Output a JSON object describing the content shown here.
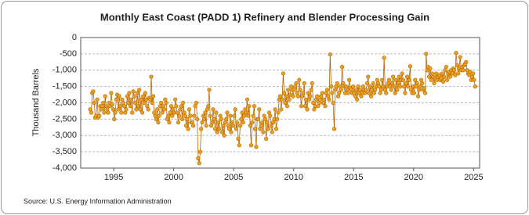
{
  "chart_data": {
    "type": "line",
    "title": "Monthly East Coast (PADD 1) Refinery and Blender Processing Gain",
    "y_label": "Thousand Barrels",
    "source": "Source: U.S. Energy Information Administration",
    "xlim": [
      1992.25,
      2025.5
    ],
    "xticks": [
      1995,
      2000,
      2005,
      2010,
      2015,
      2020,
      2025
    ],
    "ylim": [
      -4000,
      0
    ],
    "yticks": [
      {
        "value": -4000,
        "label": "-4,000"
      },
      {
        "value": -3500,
        "label": "-3,500"
      },
      {
        "value": -3000,
        "label": "-3,000"
      },
      {
        "value": -2500,
        "label": "-2,500"
      },
      {
        "value": -2000,
        "label": "-2,000"
      },
      {
        "value": -1500,
        "label": "-1,500"
      },
      {
        "value": -1000,
        "label": "-1,000"
      },
      -500,
      0
    ],
    "grid": true,
    "series": [
      {
        "name": "East Coast (PADD 1) Refinery and Blender Processing Gain",
        "color": "#e8a020",
        "line_color": "#b86400",
        "x": [
          1993.04,
          1993.13,
          1993.21,
          1993.29,
          1993.38,
          1993.46,
          1993.54,
          1993.63,
          1993.71,
          1993.79,
          1993.88,
          1993.96,
          1994.04,
          1994.13,
          1994.21,
          1994.29,
          1994.38,
          1994.46,
          1994.54,
          1994.63,
          1994.71,
          1994.79,
          1994.88,
          1994.96,
          1995.04,
          1995.13,
          1995.21,
          1995.29,
          1995.38,
          1995.46,
          1995.54,
          1995.63,
          1995.71,
          1995.79,
          1995.88,
          1995.96,
          1996.04,
          1996.13,
          1996.21,
          1996.29,
          1996.38,
          1996.46,
          1996.54,
          1996.63,
          1996.71,
          1996.79,
          1996.88,
          1996.96,
          1997.04,
          1997.13,
          1997.21,
          1997.29,
          1997.38,
          1997.46,
          1997.54,
          1997.63,
          1997.71,
          1997.79,
          1997.88,
          1997.96,
          1998.04,
          1998.13,
          1998.21,
          1998.29,
          1998.38,
          1998.46,
          1998.54,
          1998.63,
          1998.71,
          1998.79,
          1998.88,
          1998.96,
          1999.04,
          1999.13,
          1999.21,
          1999.29,
          1999.38,
          1999.46,
          1999.54,
          1999.63,
          1999.71,
          1999.79,
          1999.88,
          1999.96,
          2000.04,
          2000.13,
          2000.21,
          2000.29,
          2000.38,
          2000.46,
          2000.54,
          2000.63,
          2000.71,
          2000.79,
          2000.88,
          2000.96,
          2001.04,
          2001.13,
          2001.21,
          2001.29,
          2001.38,
          2001.46,
          2001.54,
          2001.63,
          2001.71,
          2001.79,
          2001.88,
          2001.96,
          2002.04,
          2002.13,
          2002.21,
          2002.29,
          2002.38,
          2002.46,
          2002.54,
          2002.63,
          2002.71,
          2002.79,
          2002.88,
          2002.96,
          2003.04,
          2003.13,
          2003.21,
          2003.29,
          2003.38,
          2003.46,
          2003.54,
          2003.63,
          2003.71,
          2003.79,
          2003.88,
          2003.96,
          2004.04,
          2004.13,
          2004.21,
          2004.29,
          2004.38,
          2004.46,
          2004.54,
          2004.63,
          2004.71,
          2004.79,
          2004.88,
          2004.96,
          2005.04,
          2005.13,
          2005.21,
          2005.29,
          2005.38,
          2005.46,
          2005.54,
          2005.63,
          2005.71,
          2005.79,
          2005.88,
          2005.96,
          2006.04,
          2006.13,
          2006.21,
          2006.29,
          2006.38,
          2006.46,
          2006.54,
          2006.63,
          2006.71,
          2006.79,
          2006.88,
          2006.96,
          2007.04,
          2007.13,
          2007.21,
          2007.29,
          2007.38,
          2007.46,
          2007.54,
          2007.63,
          2007.71,
          2007.79,
          2007.88,
          2007.96,
          2008.04,
          2008.13,
          2008.21,
          2008.29,
          2008.38,
          2008.46,
          2008.54,
          2008.63,
          2008.71,
          2008.79,
          2008.88,
          2008.96,
          2009.04,
          2009.13,
          2009.21,
          2009.29,
          2009.38,
          2009.46,
          2009.54,
          2009.63,
          2009.71,
          2009.79,
          2009.88,
          2009.96,
          2010.04,
          2010.13,
          2010.21,
          2010.29,
          2010.38,
          2010.46,
          2010.54,
          2010.63,
          2010.71,
          2010.79,
          2010.88,
          2010.96,
          2011.04,
          2011.13,
          2011.21,
          2011.29,
          2011.38,
          2011.46,
          2011.54,
          2011.63,
          2011.71,
          2011.79,
          2011.88,
          2011.96,
          2012.04,
          2012.13,
          2012.21,
          2012.29,
          2012.38,
          2012.46,
          2012.54,
          2012.63,
          2012.71,
          2012.79,
          2012.88,
          2012.96,
          2013.04,
          2013.13,
          2013.21,
          2013.29,
          2013.38,
          2013.46,
          2013.54,
          2013.63,
          2013.71,
          2013.79,
          2013.88,
          2013.96,
          2014.04,
          2014.13,
          2014.21,
          2014.29,
          2014.38,
          2014.46,
          2014.54,
          2014.63,
          2014.71,
          2014.79,
          2014.88,
          2014.96,
          2015.04,
          2015.13,
          2015.21,
          2015.29,
          2015.38,
          2015.46,
          2015.54,
          2015.63,
          2015.71,
          2015.79,
          2015.88,
          2015.96,
          2016.04,
          2016.13,
          2016.21,
          2016.29,
          2016.38,
          2016.46,
          2016.54,
          2016.63,
          2016.71,
          2016.79,
          2016.88,
          2016.96,
          2017.04,
          2017.13,
          2017.21,
          2017.29,
          2017.38,
          2017.46,
          2017.54,
          2017.63,
          2017.71,
          2017.79,
          2017.88,
          2017.96,
          2018.04,
          2018.13,
          2018.21,
          2018.29,
          2018.38,
          2018.46,
          2018.54,
          2018.63,
          2018.71,
          2018.79,
          2018.88,
          2018.96,
          2019.04,
          2019.13,
          2019.21,
          2019.29,
          2019.38,
          2019.46,
          2019.54,
          2019.63,
          2019.71,
          2019.79,
          2019.88,
          2019.96,
          2020.04,
          2020.13,
          2020.21,
          2020.29,
          2020.38,
          2020.46,
          2020.54,
          2020.63,
          2020.71,
          2020.79,
          2020.88,
          2020.96,
          2021.04,
          2021.13,
          2021.21,
          2021.29,
          2021.38,
          2021.46,
          2021.54,
          2021.63,
          2021.71,
          2021.79,
          2021.88,
          2021.96,
          2022.04,
          2022.13,
          2022.21,
          2022.29,
          2022.38,
          2022.46,
          2022.54,
          2022.63,
          2022.71,
          2022.79,
          2022.88,
          2022.96,
          2023.04,
          2023.13,
          2023.21,
          2023.29,
          2023.38,
          2023.46,
          2023.54,
          2023.63,
          2023.71,
          2023.79,
          2023.88,
          2023.96,
          2024.04,
          2024.13,
          2024.21,
          2024.29,
          2024.38,
          2024.46,
          2024.54,
          2024.63,
          2024.71,
          2024.79,
          2024.88,
          2024.96,
          2025.04,
          2025.13
        ],
        "values": [
          -2200,
          -2300,
          -1700,
          -1650,
          -2000,
          -2450,
          -2400,
          -1900,
          -2450,
          -2400,
          -2100,
          -2200,
          -2100,
          -2000,
          -2300,
          -1800,
          -2100,
          -2200,
          -2300,
          -2000,
          -2100,
          -1700,
          -2050,
          -2200,
          -2500,
          -2300,
          -1900,
          -1750,
          -2200,
          -1800,
          -2100,
          -2300,
          -1900,
          -2000,
          -2100,
          -2300,
          -2200,
          -1800,
          -2000,
          -1700,
          -2100,
          -1900,
          -2300,
          -1650,
          -1800,
          -2000,
          -2200,
          -1700,
          -2100,
          -1600,
          -2200,
          -1900,
          -2300,
          -1800,
          -2000,
          -1700,
          -1900,
          -2100,
          -2200,
          -1850,
          -1900,
          -1200,
          -2000,
          -1800,
          -2300,
          -2400,
          -2500,
          -2200,
          -2600,
          -2400,
          -2100,
          -2000,
          -2300,
          -2100,
          -2200,
          -1900,
          -2000,
          -2500,
          -2400,
          -2600,
          -2300,
          -2100,
          -2400,
          -2200,
          -2300,
          -1900,
          -2100,
          -2300,
          -2600,
          -2400,
          -2200,
          -2100,
          -2500,
          -2000,
          -2300,
          -2400,
          -2700,
          -2500,
          -2800,
          -2200,
          -2400,
          -2600,
          -2600,
          -2700,
          -2400,
          -2100,
          -2000,
          -2500,
          -3700,
          -3850,
          -3500,
          -2800,
          -2600,
          -2400,
          -2500,
          -2300,
          -2700,
          -2200,
          -2100,
          -1600,
          -2400,
          -2700,
          -2600,
          -2200,
          -2500,
          -2800,
          -2300,
          -2900,
          -2600,
          -2800,
          -2400,
          -2500,
          -2900,
          -2700,
          -3000,
          -2600,
          -2500,
          -2300,
          -2700,
          -2800,
          -2400,
          -2900,
          -2600,
          -2700,
          -2400,
          -2200,
          -2800,
          -2600,
          -3100,
          -3300,
          -2700,
          -2500,
          -2300,
          -2600,
          -2400,
          -2200,
          -2300,
          -1900,
          -2400,
          -2100,
          -2700,
          -3300,
          -2600,
          -2400,
          -2100,
          -2800,
          -3350,
          -2500,
          -2500,
          -2200,
          -2800,
          -2700,
          -2600,
          -2900,
          -2400,
          -2500,
          -3100,
          -2600,
          -2800,
          -2300,
          -2400,
          -2700,
          -2900,
          -2600,
          -2500,
          -2200,
          -2800,
          -2500,
          -2300,
          -1900,
          -1800,
          -2200,
          -1900,
          -1100,
          -1700,
          -2000,
          -1800,
          -2100,
          -1600,
          -1900,
          -1750,
          -1500,
          -1600,
          -1800,
          -1600,
          -1500,
          -1400,
          -1700,
          -1800,
          -1300,
          -1600,
          -2100,
          -1800,
          -1700,
          -1400,
          -2100,
          -1900,
          -2200,
          -1700,
          -1900,
          -1800,
          -1600,
          -1400,
          -2000,
          -2200,
          -2100,
          -1900,
          -1800,
          -2100,
          -2000,
          -1900,
          -1800,
          -1700,
          -2000,
          -1900,
          -2100,
          -1700,
          -1600,
          -1800,
          -1900,
          -520,
          -1500,
          -1700,
          -2000,
          -2800,
          -1600,
          -1500,
          -1400,
          -1800,
          -1700,
          -1500,
          -1600,
          -900,
          -1400,
          -1500,
          -1700,
          -1500,
          -1600,
          -1700,
          -1300,
          -1550,
          -1600,
          -1700,
          -1500,
          -1700,
          -1800,
          -1600,
          -1900,
          -1500,
          -1700,
          -1600,
          -1800,
          -1700,
          -1500,
          -1600,
          -1700,
          -1600,
          -1400,
          -1200,
          -1700,
          -1500,
          -1800,
          -1600,
          -1400,
          -1700,
          -1600,
          -1500,
          -1300,
          -1400,
          -1500,
          -1700,
          -1600,
          -1300,
          -1500,
          -620,
          -1600,
          -1700,
          -1500,
          -1400,
          -1300,
          -1500,
          -1600,
          -1400,
          -1200,
          -1500,
          -1700,
          -1300,
          -1600,
          -1400,
          -1200,
          -1500,
          -1300,
          -1100,
          -1300,
          -1500,
          -1700,
          -1400,
          -1200,
          -1500,
          -1300,
          -880,
          -1600,
          -1700,
          -1500,
          -1700,
          -1300,
          -1500,
          -1400,
          -1800,
          -1600,
          -1500,
          -1300,
          -1400,
          -1600,
          -1550,
          -1700,
          -500,
          -1000,
          -900,
          -1200,
          -950,
          -1300,
          -1100,
          -1200,
          -1400,
          -1250,
          -1100,
          -1300,
          -1200,
          -1150,
          -1300,
          -1250,
          -1100,
          -1350,
          -1200,
          -1000,
          -900,
          -1300,
          -1100,
          -1050,
          -1200,
          -1000,
          -1100,
          -950,
          -1000,
          -1150,
          -470,
          -850,
          -1100,
          -950,
          -600,
          -1000,
          -900,
          -1000,
          -850,
          -800,
          -750,
          -1000,
          -1100,
          -1150,
          -1050,
          -1300,
          -1200,
          -1100,
          -1300,
          -1500
        ]
      }
    ]
  }
}
